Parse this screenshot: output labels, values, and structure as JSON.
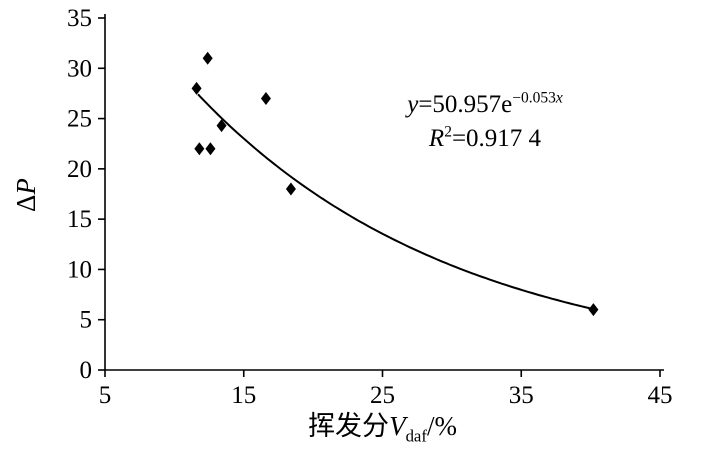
{
  "chart_data": {
    "type": "scatter",
    "title": "",
    "xlabel_cn": "挥发分",
    "xlabel_var": "V",
    "xlabel_sub": "daf",
    "xlabel_unit": "/%",
    "ylabel_delta": "Δ",
    "ylabel_var": "P",
    "xlim": [
      5,
      45
    ],
    "ylim": [
      0,
      35
    ],
    "x_ticks": [
      5,
      15,
      25,
      35,
      45
    ],
    "y_ticks": [
      0,
      5,
      10,
      15,
      20,
      25,
      30,
      35
    ],
    "grid": false,
    "marker": "diamond",
    "marker_color": "#000000",
    "line_color": "#000000",
    "points": [
      {
        "x": 11.6,
        "y": 28
      },
      {
        "x": 12.4,
        "y": 31
      },
      {
        "x": 11.8,
        "y": 22
      },
      {
        "x": 12.6,
        "y": 22
      },
      {
        "x": 13.4,
        "y": 24.3
      },
      {
        "x": 16.6,
        "y": 27
      },
      {
        "x": 18.4,
        "y": 18
      },
      {
        "x": 40.2,
        "y": 6
      }
    ],
    "trendline": {
      "kind": "exponential",
      "a": 50.957,
      "b": -0.053,
      "x_start": 11.7,
      "x_end": 40.3,
      "r_squared": 0.9174
    },
    "annotation": {
      "eq_y": "y",
      "eq_mid": "=50.957e",
      "eq_exp_num": "−0.053",
      "eq_exp_var": "x",
      "r_var": "R",
      "r_sup": "2",
      "r_rest": "=0.917 4"
    }
  }
}
